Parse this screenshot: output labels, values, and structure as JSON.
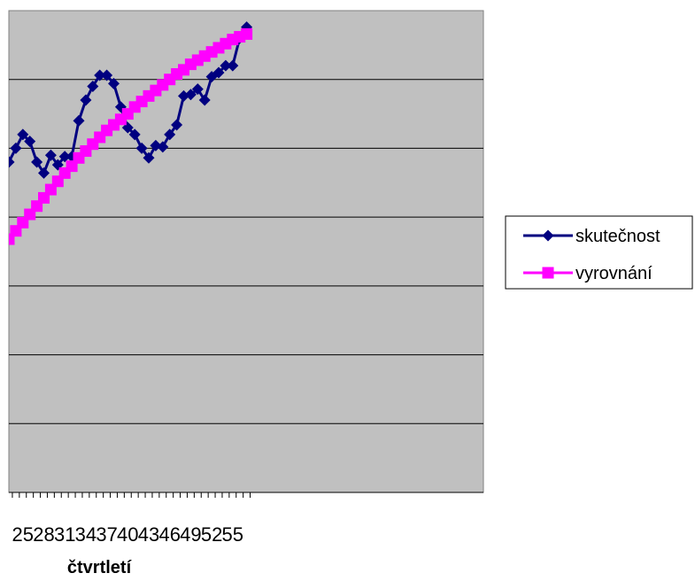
{
  "chart_data": {
    "type": "line",
    "xlabel": "čtvrtletí",
    "ylabel": "",
    "title": "",
    "x": [
      23,
      24,
      25,
      26,
      27,
      28,
      29,
      30,
      31,
      32,
      33,
      34,
      35,
      36,
      37,
      38,
      39,
      40,
      41,
      42,
      43,
      44,
      45,
      46,
      47,
      48,
      49,
      50,
      51,
      52,
      53,
      54,
      55,
      56,
      57
    ],
    "x_tick_labels": [
      "25",
      "28",
      "31",
      "34",
      "37",
      "40",
      "43",
      "46",
      "49",
      "52",
      "55"
    ],
    "grid": "horizontal",
    "legend_position": "right",
    "series": [
      {
        "name": "skutečnost",
        "color": "#000080",
        "marker": "diamond",
        "values": [
          5.4,
          5.5,
          5.6,
          5.55,
          5.4,
          5.32,
          5.45,
          5.38,
          5.44,
          5.44,
          5.7,
          5.85,
          5.95,
          6.03,
          6.03,
          5.97,
          5.8,
          5.65,
          5.6,
          5.5,
          5.43,
          5.52,
          5.51,
          5.6,
          5.67,
          5.88,
          5.89,
          5.93,
          5.85,
          6.02,
          6.05,
          6.1,
          6.1,
          6.3,
          6.38
        ]
      },
      {
        "name": "vyrovnání",
        "color": "#ff00ff",
        "marker": "square",
        "values": [
          4.84,
          4.9,
          4.96,
          5.02,
          5.08,
          5.14,
          5.2,
          5.26,
          5.32,
          5.37,
          5.43,
          5.48,
          5.53,
          5.58,
          5.63,
          5.67,
          5.71,
          5.75,
          5.8,
          5.84,
          5.88,
          5.92,
          5.96,
          6.0,
          6.04,
          6.07,
          6.11,
          6.14,
          6.17,
          6.2,
          6.23,
          6.26,
          6.29,
          6.31,
          6.33
        ]
      }
    ],
    "colors": {
      "plot_background": "#c0c0c0",
      "gridline": "#000000"
    }
  }
}
